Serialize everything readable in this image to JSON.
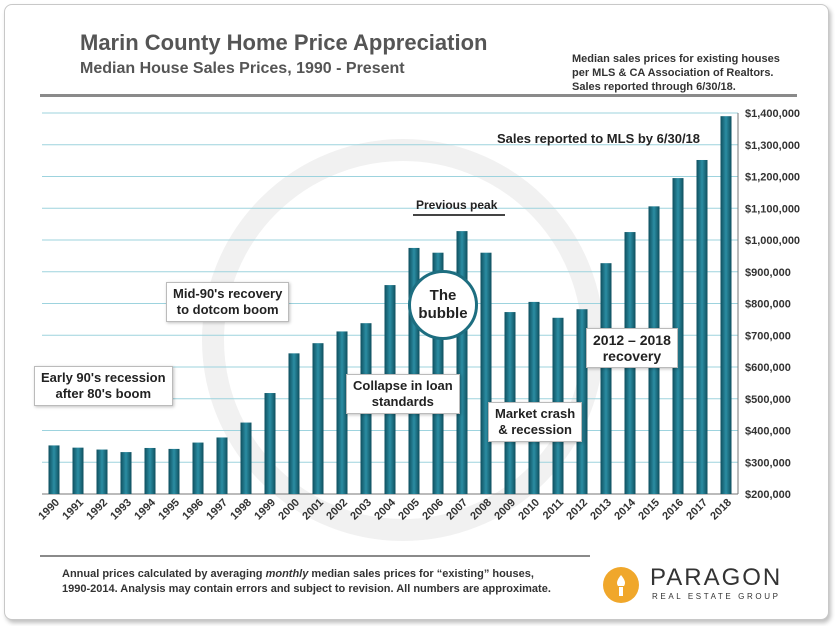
{
  "header": {
    "title": "Marin County Home Price Appreciation",
    "subtitle": "Median House Sales Prices, 1990 - Present",
    "source_lines": [
      "Median sales prices for existing houses",
      "per MLS & CA Association of Realtors.",
      "Sales reported through 6/30/18."
    ]
  },
  "annotations": {
    "sales_reported": "Sales reported to MLS by 6/30/18",
    "previous_peak": "Previous peak",
    "bubble_1": "The",
    "bubble_2": "bubble",
    "mid90s_1": "Mid-90's recovery",
    "mid90s_2": "to dotcom boom",
    "early90s_1": "Early 90's recession",
    "early90s_2": "after 80's boom",
    "collapse_1": "Collapse in loan",
    "collapse_2": "standards",
    "crash_1": "Market crash",
    "crash_2": "& recession",
    "recovery_1": "2012 – 2018",
    "recovery_2": "recovery"
  },
  "footer": {
    "text_a": "Annual prices calculated by averaging ",
    "text_em": "monthly",
    "text_b": " median sales prices for “existing” houses,",
    "text_line2": "1990-2014.  Analysis may contain errors and subject to revision. All numbers are approximate."
  },
  "logo": {
    "name": "PARAGON",
    "tagline": "REAL ESTATE GROUP",
    "icon": "torch-icon",
    "color": "#f0a72b"
  },
  "chart_data": {
    "type": "bar",
    "categories": [
      "1990",
      "1991",
      "1992",
      "1993",
      "1994",
      "1995",
      "1996",
      "1997",
      "1998",
      "1999",
      "2000",
      "2001",
      "2002",
      "2003",
      "2004",
      "2005",
      "2006",
      "2007",
      "2008",
      "2009",
      "2010",
      "2011",
      "2012",
      "2013",
      "2014",
      "2015",
      "2016",
      "2017",
      "2018"
    ],
    "values": [
      353000,
      346000,
      340000,
      332000,
      345000,
      342000,
      362000,
      378000,
      425000,
      518000,
      643000,
      675000,
      712000,
      738000,
      858000,
      975000,
      960000,
      1028000,
      960000,
      773000,
      805000,
      755000,
      782000,
      927000,
      1025000,
      1106000,
      1195000,
      1252000,
      1390000
    ],
    "ylim": [
      200000,
      1400000
    ],
    "yticks": [
      "$200,000",
      "$300,000",
      "$400,000",
      "$500,000",
      "$600,000",
      "$700,000",
      "$800,000",
      "$900,000",
      "$1,000,000",
      "$1,100,000",
      "$1,200,000",
      "$1,300,000",
      "$1,400,000"
    ],
    "ytick_values": [
      200000,
      300000,
      400000,
      500000,
      600000,
      700000,
      800000,
      900000,
      1000000,
      1100000,
      1200000,
      1300000,
      1400000
    ],
    "y_axis_side": "right",
    "grid": true,
    "colors": {
      "bar_dark": "#0f4f5e",
      "bar_light": "#2b8da3",
      "grid": "#9dd3de"
    }
  }
}
